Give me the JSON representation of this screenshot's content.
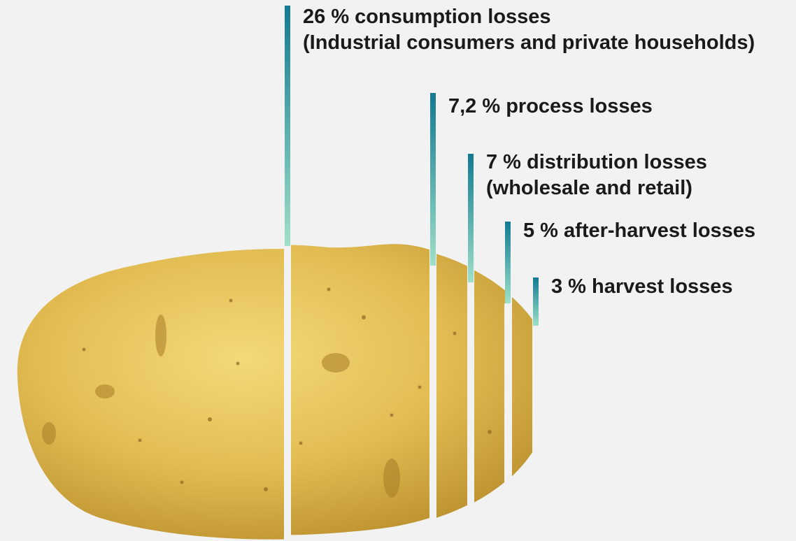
{
  "colors": {
    "background": "#f2f2f2",
    "bar_top": "#127a92",
    "bar_bottom": "#9ee0c8",
    "text": "#1a1a1a",
    "potato": "#e3bf55"
  },
  "losses": [
    {
      "percent": 26,
      "lines": [
        "26 % consumption losses",
        "(Industrial consumers and private households)"
      ]
    },
    {
      "percent": 7.2,
      "lines": [
        "7,2 % process losses"
      ]
    },
    {
      "percent": 7,
      "lines": [
        "7 % distribution losses",
        "(wholesale and retail)"
      ]
    },
    {
      "percent": 5,
      "lines": [
        "5 % after-harvest losses"
      ]
    },
    {
      "percent": 3,
      "lines": [
        "3 % harvest losses"
      ]
    }
  ]
}
